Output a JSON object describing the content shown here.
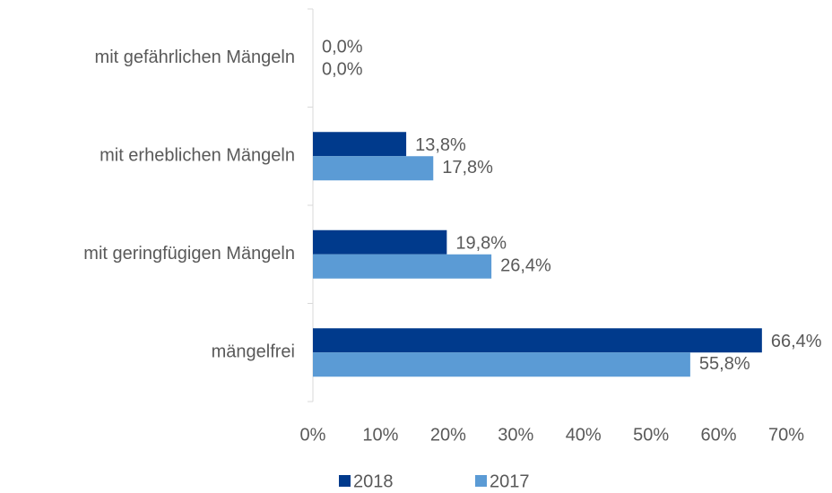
{
  "chart_data": {
    "type": "hbar",
    "categories": [
      "mit gefährlichen Mängeln",
      "mit erheblichen Mängeln",
      "mit geringfügigen Mängeln",
      "mängelfrei"
    ],
    "series": [
      {
        "name": "2018",
        "color": "#003a8c",
        "values": [
          0.0,
          13.8,
          19.8,
          66.4
        ],
        "value_labels": [
          "0,0%",
          "13,8%",
          "19,8%",
          "66,4%"
        ]
      },
      {
        "name": "2017",
        "color": "#5b9bd5",
        "values": [
          0.0,
          17.8,
          26.4,
          55.8
        ],
        "value_labels": [
          "0,0%",
          "17,8%",
          "26,4%",
          "55,8%"
        ]
      }
    ],
    "xlim": [
      0,
      70
    ],
    "xticks": [
      {
        "value": 0,
        "label": "0%"
      },
      {
        "value": 10,
        "label": "10%"
      },
      {
        "value": 20,
        "label": "20%"
      },
      {
        "value": 30,
        "label": "30%"
      },
      {
        "value": 40,
        "label": "40%"
      },
      {
        "value": 50,
        "label": "50%"
      },
      {
        "value": 60,
        "label": "60%"
      },
      {
        "value": 70,
        "label": "70%"
      }
    ],
    "legend": "bottom"
  }
}
